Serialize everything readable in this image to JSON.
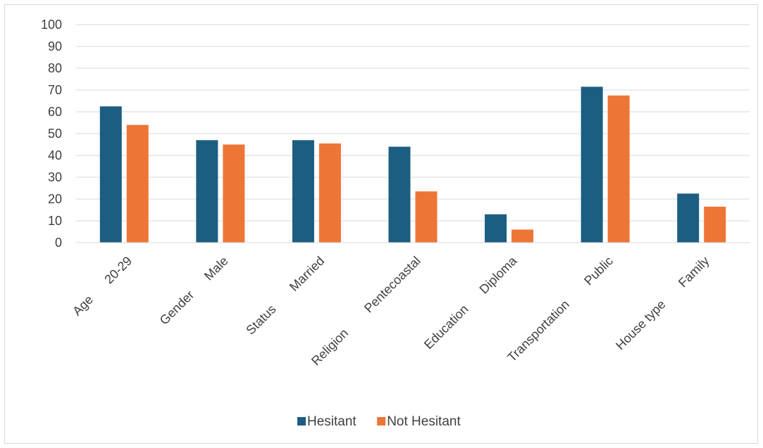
{
  "chart_data": {
    "type": "bar",
    "categories": [
      {
        "group": "Age",
        "value_label": "20-29"
      },
      {
        "group": "Gender",
        "value_label": "Male"
      },
      {
        "group": "Status",
        "value_label": "Married"
      },
      {
        "group": "Religion",
        "value_label": "Pentecoastal"
      },
      {
        "group": "Education",
        "value_label": "Diploma"
      },
      {
        "group": "Transportation",
        "value_label": "Public"
      },
      {
        "group": "House type",
        "value_label": "Family"
      }
    ],
    "series": [
      {
        "name": "Hesitant",
        "color": "#1b5e82",
        "values": [
          62.5,
          47,
          47,
          44,
          13,
          71.5,
          22.5
        ]
      },
      {
        "name": "Not Hesitant",
        "color": "#ed7637",
        "values": [
          54,
          45,
          45.5,
          23.5,
          6,
          67.5,
          16.5
        ]
      }
    ],
    "ylim": [
      0,
      100
    ],
    "yticks": [
      0,
      10,
      20,
      30,
      40,
      50,
      60,
      70,
      80,
      90,
      100
    ],
    "grid": true,
    "gridline_color": "#d9d9d9",
    "legend_position": "bottom"
  }
}
